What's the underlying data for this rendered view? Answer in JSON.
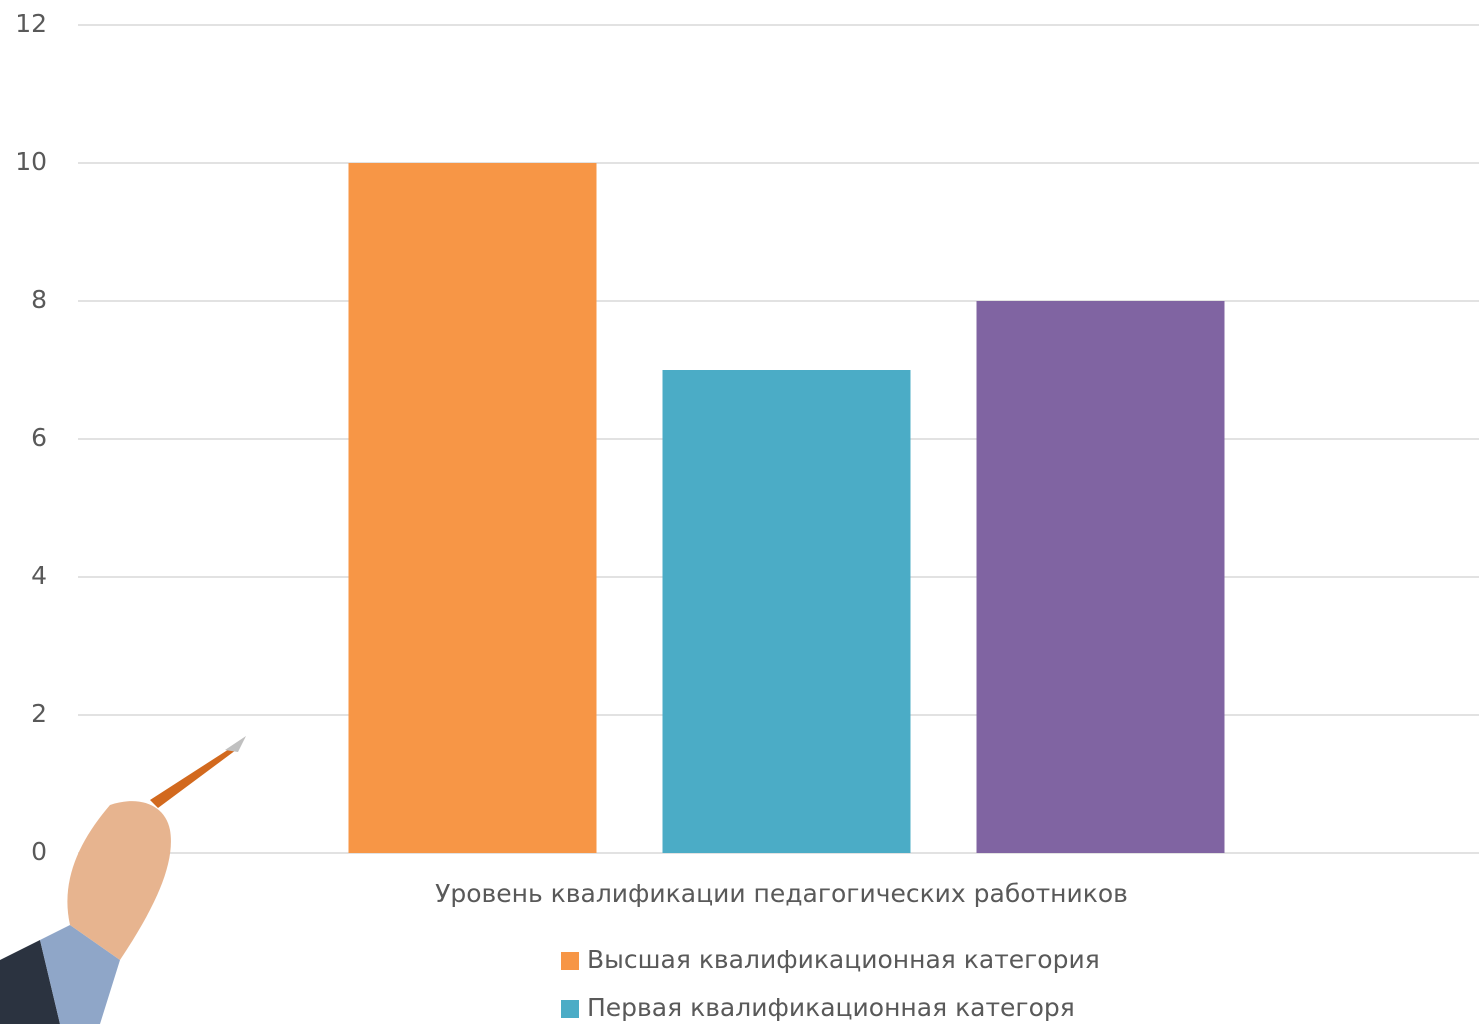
{
  "chart_data": {
    "type": "bar",
    "categories": [
      "Уровень квалификации педагогических работников"
    ],
    "series": [
      {
        "name": "Высшая квалификационная категория",
        "color": "#f79646",
        "values": [
          10
        ]
      },
      {
        "name": "Первая квалификационная категоря",
        "color": "#4bacc6",
        "values": [
          7
        ]
      },
      {
        "color": "#8064a2",
        "values": [
          8
        ]
      }
    ],
    "ylim": [
      0,
      12
    ],
    "yticks": [
      0,
      2,
      4,
      6,
      8,
      10,
      12
    ],
    "grid": true
  }
}
